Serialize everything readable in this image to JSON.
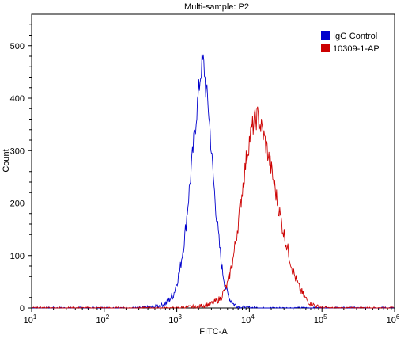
{
  "chart_data": {
    "type": "histogram",
    "title": "Multi-sample: P2",
    "xlabel": "FITC-A",
    "ylabel": "Count",
    "xscale": "log",
    "xlim": [
      10,
      1000000
    ],
    "ylim": [
      0,
      560
    ],
    "x_ticks": [
      {
        "value": 10,
        "base": "10",
        "exp": "1"
      },
      {
        "value": 100,
        "base": "10",
        "exp": "2"
      },
      {
        "value": 1000,
        "base": "10",
        "exp": "3"
      },
      {
        "value": 10000,
        "base": "10",
        "exp": "4"
      },
      {
        "value": 100000,
        "base": "10",
        "exp": "5"
      },
      {
        "value": 1000000,
        "base": "10",
        "exp": "6"
      }
    ],
    "y_ticks": [
      0,
      100,
      200,
      300,
      400,
      500
    ],
    "y_tick_labels": [
      "0",
      "100",
      "200",
      "300",
      "400",
      "500"
    ],
    "legend_position": "top-right",
    "series": [
      {
        "name": "IgG Control",
        "color": "#0000cc",
        "peak_x": 2300,
        "peak_y": 470,
        "x": [
          300,
          500,
          700,
          900,
          1100,
          1300,
          1500,
          1700,
          1900,
          2100,
          2200,
          2300,
          2400,
          2500,
          2700,
          2900,
          3100,
          3400,
          3800,
          4200,
          4700,
          5300,
          6000,
          7000,
          9000,
          15000
        ],
        "y": [
          0,
          2,
          8,
          25,
          70,
          140,
          230,
          310,
          380,
          440,
          460,
          470,
          455,
          420,
          390,
          330,
          270,
          200,
          130,
          75,
          40,
          18,
          8,
          3,
          1,
          0
        ]
      },
      {
        "name": "10309-1-AP",
        "color": "#cc0000",
        "peak_x": 13000,
        "peak_y": 365,
        "x": [
          1000,
          2000,
          3000,
          4000,
          5000,
          6000,
          7000,
          8000,
          9000,
          10000,
          11000,
          12000,
          13000,
          14000,
          15000,
          17000,
          19000,
          22000,
          25000,
          29000,
          34000,
          40000,
          48000,
          58000,
          70000,
          90000,
          120000
        ],
        "y": [
          0,
          3,
          8,
          18,
          45,
          95,
          160,
          225,
          280,
          320,
          345,
          358,
          365,
          350,
          340,
          310,
          280,
          235,
          195,
          150,
          110,
          70,
          40,
          20,
          8,
          2,
          0
        ]
      }
    ]
  }
}
